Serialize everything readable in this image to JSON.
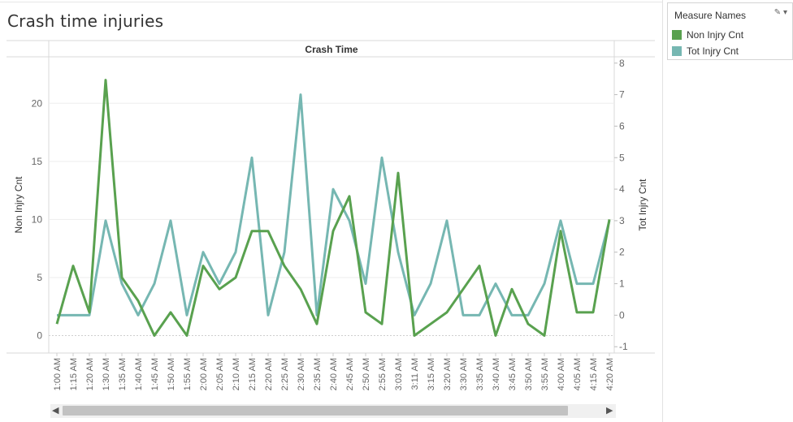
{
  "title": "Crash time injuries",
  "legend": {
    "title": "Measure Names",
    "items": [
      {
        "label": "Non Injry Cnt",
        "color": "#59a14f"
      },
      {
        "label": "Tot Injry Cnt",
        "color": "#76b7b2"
      }
    ]
  },
  "chart_data": {
    "type": "line",
    "title": "Crash Time",
    "categories": [
      "1:00 AM",
      "1:15 AM",
      "1:20 AM",
      "1:30 AM",
      "1:35 AM",
      "1:40 AM",
      "1:45 AM",
      "1:50 AM",
      "1:55 AM",
      "2:00 AM",
      "2:05 AM",
      "2:10 AM",
      "2:15 AM",
      "2:20 AM",
      "2:25 AM",
      "2:30 AM",
      "2:35 AM",
      "2:40 AM",
      "2:45 AM",
      "2:50 AM",
      "2:55 AM",
      "3:03 AM",
      "3:11 AM",
      "3:15 AM",
      "3:20 AM",
      "3:30 AM",
      "3:35 AM",
      "3:40 AM",
      "3:45 AM",
      "3:50 AM",
      "3:55 AM",
      "4:00 AM",
      "4:05 AM",
      "4:15 AM",
      "4:20 AM"
    ],
    "series": [
      {
        "name": "Non Injry Cnt",
        "axis": "left",
        "color": "#59a14f",
        "values": [
          1,
          6,
          2,
          22,
          5,
          3,
          0,
          2,
          0,
          6,
          4,
          5,
          9,
          9,
          6,
          4,
          1,
          9,
          12,
          2,
          1,
          14,
          0,
          1,
          2,
          4,
          6,
          0,
          4,
          1,
          0,
          9,
          2,
          2,
          10
        ]
      },
      {
        "name": "Tot Injry Cnt",
        "axis": "right",
        "color": "#76b7b2",
        "values": [
          0,
          0,
          0,
          3,
          1,
          0,
          1,
          3,
          0,
          2,
          1,
          2,
          5,
          0,
          2,
          7,
          0,
          4,
          3,
          1,
          5,
          2,
          0,
          1,
          3,
          0,
          0,
          1,
          0,
          0,
          1,
          3,
          1,
          1,
          3
        ]
      }
    ],
    "ylabel": "Non Injry Cnt",
    "ylim": [
      -1.5,
      24
    ],
    "yticks": [
      0,
      5,
      10,
      15,
      20
    ],
    "y2label": "Tot Injry Cnt",
    "y2lim": [
      -1.2,
      8.2
    ],
    "y2ticks": [
      -1,
      0,
      1,
      2,
      3,
      4,
      5,
      6,
      7,
      8
    ],
    "grid": true
  }
}
